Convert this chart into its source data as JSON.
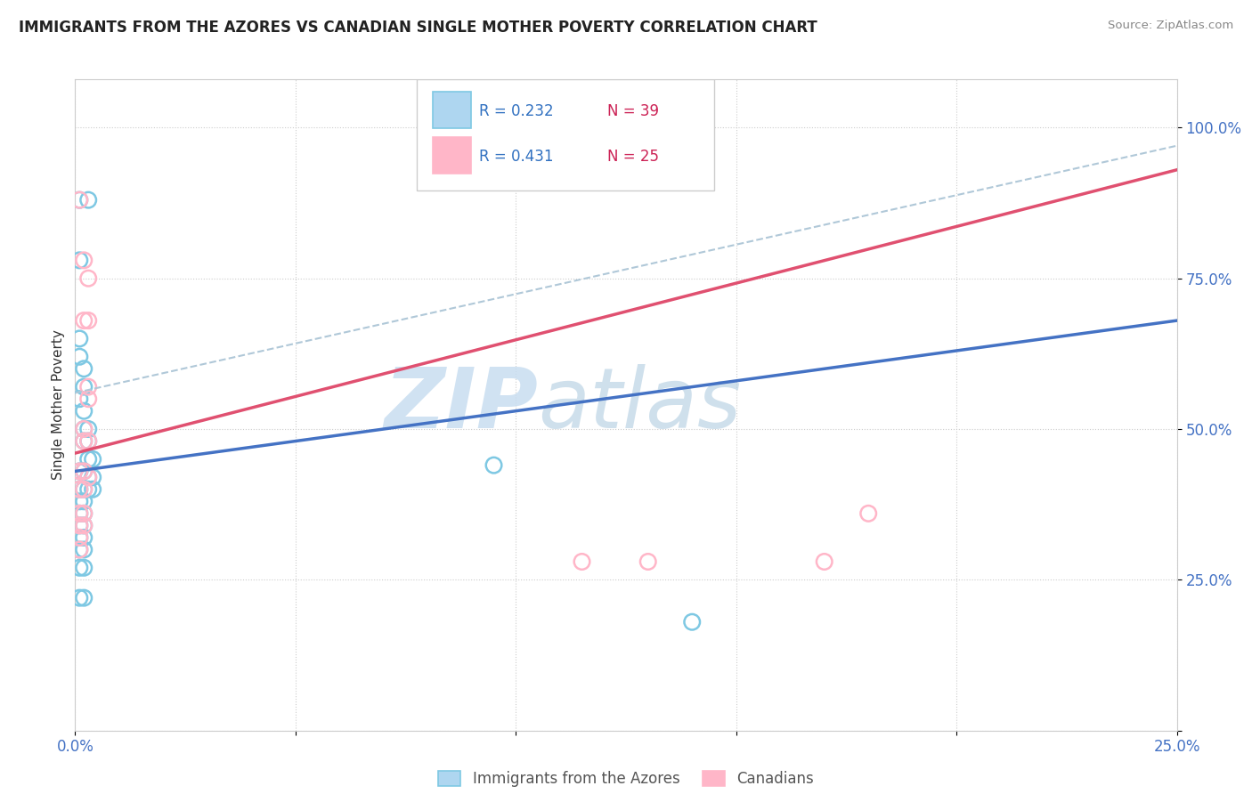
{
  "title": "IMMIGRANTS FROM THE AZORES VS CANADIAN SINGLE MOTHER POVERTY CORRELATION CHART",
  "source": "Source: ZipAtlas.com",
  "ylabel": "Single Mother Poverty",
  "y_ticks": [
    0.0,
    0.25,
    0.5,
    0.75,
    1.0
  ],
  "y_tick_labels": [
    "",
    "25.0%",
    "50.0%",
    "75.0%",
    "100.0%"
  ],
  "x_range": [
    0.0,
    0.25
  ],
  "y_range": [
    0.0,
    1.08
  ],
  "blue_R": 0.232,
  "blue_N": 39,
  "pink_R": 0.431,
  "pink_N": 25,
  "blue_color": "#7ec8e3",
  "pink_color": "#ffb6c8",
  "blue_line_color": "#4472c4",
  "pink_line_color": "#e05070",
  "dashed_line_color": "#b0c8d8",
  "legend_R_color": "#3070c0",
  "legend_N_color": "#cc2255",
  "blue_scatter": [
    [
      0.001,
      0.88
    ],
    [
      0.003,
      0.88
    ],
    [
      0.001,
      0.78
    ],
    [
      0.001,
      0.65
    ],
    [
      0.001,
      0.62
    ],
    [
      0.002,
      0.6
    ],
    [
      0.002,
      0.57
    ],
    [
      0.001,
      0.55
    ],
    [
      0.002,
      0.53
    ],
    [
      0.002,
      0.5
    ],
    [
      0.003,
      0.5
    ],
    [
      0.002,
      0.48
    ],
    [
      0.003,
      0.48
    ],
    [
      0.003,
      0.45
    ],
    [
      0.004,
      0.45
    ],
    [
      0.001,
      0.43
    ],
    [
      0.002,
      0.43
    ],
    [
      0.003,
      0.42
    ],
    [
      0.004,
      0.42
    ],
    [
      0.001,
      0.4
    ],
    [
      0.002,
      0.4
    ],
    [
      0.003,
      0.4
    ],
    [
      0.004,
      0.4
    ],
    [
      0.001,
      0.38
    ],
    [
      0.002,
      0.38
    ],
    [
      0.001,
      0.36
    ],
    [
      0.002,
      0.36
    ],
    [
      0.001,
      0.34
    ],
    [
      0.002,
      0.34
    ],
    [
      0.001,
      0.32
    ],
    [
      0.002,
      0.32
    ],
    [
      0.001,
      0.3
    ],
    [
      0.002,
      0.3
    ],
    [
      0.001,
      0.27
    ],
    [
      0.002,
      0.27
    ],
    [
      0.001,
      0.22
    ],
    [
      0.002,
      0.22
    ],
    [
      0.095,
      0.44
    ],
    [
      0.14,
      0.18
    ]
  ],
  "pink_scatter": [
    [
      0.001,
      0.88
    ],
    [
      0.002,
      0.78
    ],
    [
      0.003,
      0.75
    ],
    [
      0.002,
      0.68
    ],
    [
      0.003,
      0.68
    ],
    [
      0.003,
      0.57
    ],
    [
      0.003,
      0.55
    ],
    [
      0.002,
      0.5
    ],
    [
      0.002,
      0.48
    ],
    [
      0.003,
      0.48
    ],
    [
      0.001,
      0.43
    ],
    [
      0.002,
      0.43
    ],
    [
      0.001,
      0.4
    ],
    [
      0.002,
      0.4
    ],
    [
      0.001,
      0.36
    ],
    [
      0.002,
      0.36
    ],
    [
      0.001,
      0.34
    ],
    [
      0.002,
      0.34
    ],
    [
      0.001,
      0.32
    ],
    [
      0.001,
      0.3
    ],
    [
      0.003,
      0.42
    ],
    [
      0.18,
      0.36
    ],
    [
      0.13,
      0.28
    ],
    [
      0.115,
      0.28
    ],
    [
      0.17,
      0.28
    ]
  ],
  "blue_line_x": [
    0.0,
    0.25
  ],
  "blue_line_y": [
    0.43,
    0.68
  ],
  "pink_line_x": [
    0.0,
    0.25
  ],
  "pink_line_y": [
    0.46,
    0.93
  ],
  "dashed_line_x": [
    0.0,
    0.25
  ],
  "dashed_line_y": [
    0.56,
    0.97
  ],
  "watermark_zip": "ZIP",
  "watermark_atlas": "atlas",
  "background_color": "#ffffff"
}
